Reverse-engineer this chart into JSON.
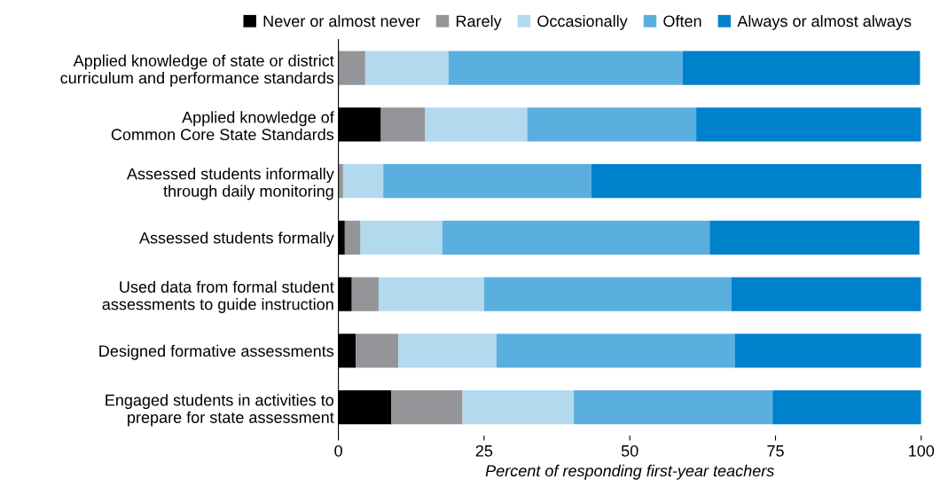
{
  "chart_data": {
    "type": "bar",
    "orientation": "horizontal",
    "stacked": true,
    "xlabel": "Percent of responding first-year teachers",
    "categories": [
      "Applied knowledge of state or district\ncurriculum and performance standards",
      "Applied knowledge of\nCommon Core State Standards",
      "Assessed students informally\nthrough daily monitoring",
      "Assessed students formally",
      "Used data from formal student\nassessments to guide instruction",
      "Designed formative assessments",
      "Engaged students in activities to\nprepare for state assessment"
    ],
    "series": [
      {
        "name": "Never or almost never",
        "color": "#000000",
        "values": [
          0,
          7.3,
          0,
          1.1,
          2.3,
          3.0,
          9.1
        ]
      },
      {
        "name": "Rarely",
        "color": "#939598",
        "values": [
          4.6,
          7.6,
          0.8,
          2.7,
          4.6,
          7.3,
          12.2
        ]
      },
      {
        "name": "Occasionally",
        "color": "#b3d9ef",
        "values": [
          14.3,
          17.5,
          6.9,
          14.0,
          18.1,
          16.8,
          19.1
        ]
      },
      {
        "name": "Often",
        "color": "#5aafdf",
        "values": [
          40.2,
          29.0,
          35.7,
          45.9,
          42.4,
          40.9,
          34.1
        ]
      },
      {
        "name": "Always or almost always",
        "color": "#0081cc",
        "values": [
          40.7,
          38.6,
          56.7,
          36.0,
          32.6,
          32.0,
          25.5
        ]
      }
    ],
    "xlim": [
      0,
      100
    ],
    "xticks": [
      0,
      25,
      50,
      75,
      100
    ],
    "grid": false,
    "legend": "top"
  }
}
